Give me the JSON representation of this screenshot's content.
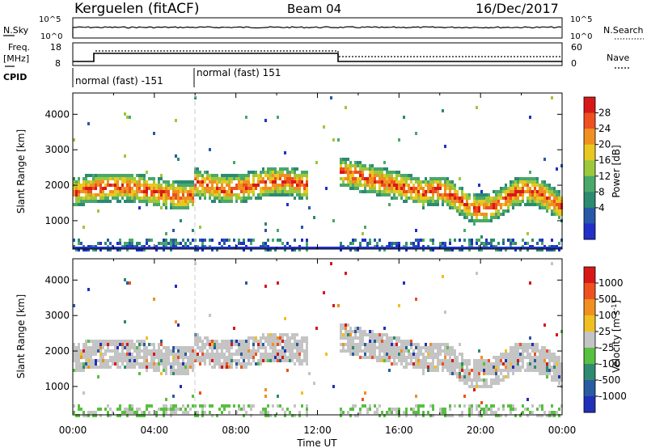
{
  "header": {
    "radar": "Kerguelen (fitACF)",
    "beam": "Beam 04",
    "date": "16/Dec/2017"
  },
  "strip_panels": {
    "nsky": {
      "left_label": "N.Sky",
      "right_label": "N.Search",
      "left_ticks": [
        "10^5",
        "10^0"
      ],
      "right_ticks": [
        "10^5",
        "10^0"
      ]
    },
    "freq": {
      "left_label_1": "Freq.",
      "left_label_2": "[MHz]",
      "right_label": "Nave",
      "left_ticks": [
        "18",
        "8"
      ],
      "right_ticks": [
        "60",
        "0"
      ]
    },
    "cpid": {
      "label": "CPID",
      "segments": [
        "normal (fast) -151",
        "normal (fast) 151"
      ]
    }
  },
  "chart_data": [
    {
      "type": "heatmap",
      "name": "power",
      "ylabel": "Slant Range [km]",
      "xlabel": "Time UT",
      "x_ticks": [
        "00:00",
        "04:00",
        "08:00",
        "12:00",
        "16:00",
        "20:00",
        "00:00"
      ],
      "xlim_hours": [
        0,
        24
      ],
      "ylim_km": [
        200,
        4600
      ],
      "y_ticks": [
        1000,
        2000,
        3000,
        4000
      ],
      "colorbar": {
        "label": "Power [dB]",
        "ticks": [
          "28",
          "24",
          "20",
          "16",
          "12",
          "8",
          "4"
        ],
        "colors": [
          "#2030c8",
          "#2858a8",
          "#2c8a70",
          "#4aa86a",
          "#9ec83c",
          "#e8c820",
          "#f09020",
          "#ee5020",
          "#d81818"
        ]
      }
    },
    {
      "type": "heatmap",
      "name": "velocity",
      "ylabel": "Slant Range [km]",
      "xlabel": "Time UT",
      "x_ticks": [
        "00:00",
        "04:00",
        "08:00",
        "12:00",
        "16:00",
        "20:00",
        "00:00"
      ],
      "xlim_hours": [
        0,
        24
      ],
      "ylim_km": [
        200,
        4600
      ],
      "y_ticks": [
        1000,
        2000,
        3000,
        4000
      ],
      "colorbar": {
        "label": "Velocity [m s",
        "label_sup": "-1",
        "label_end": "]",
        "ticks": [
          "1000",
          "500",
          "100",
          "25",
          "-25",
          "-100",
          "-500",
          "-1000"
        ],
        "colors": [
          "#2030b8",
          "#2a5aa0",
          "#2e8a70",
          "#58c040",
          "#c4c4c4",
          "#f0c020",
          "#f09020",
          "#ee5020",
          "#d81818"
        ]
      }
    }
  ]
}
